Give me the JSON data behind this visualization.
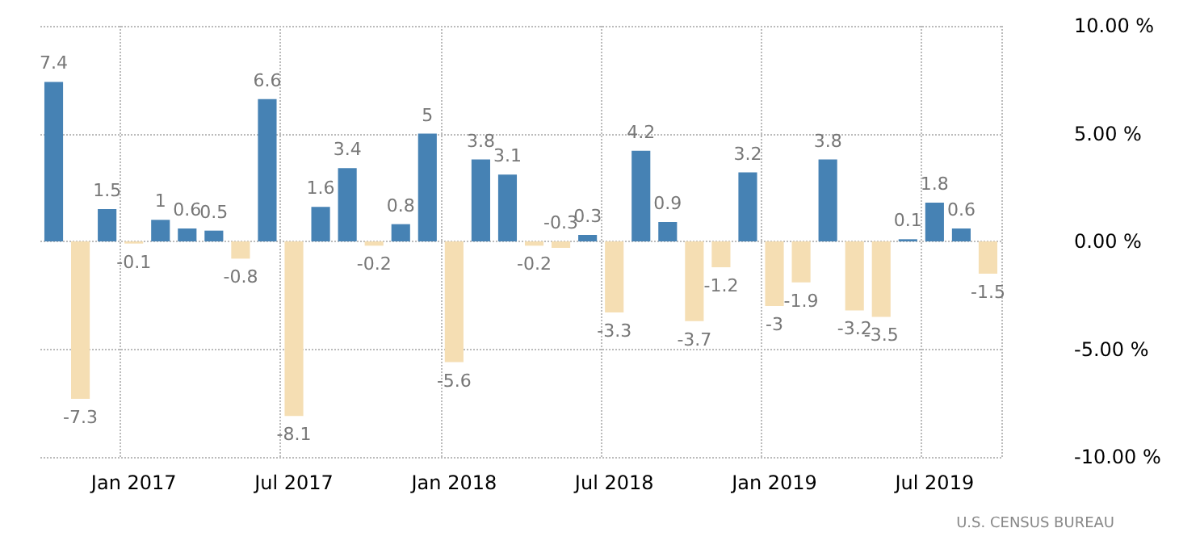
{
  "chart_data": {
    "type": "bar",
    "categories": [
      null,
      null,
      null,
      "Jan 2017",
      null,
      null,
      null,
      null,
      null,
      "Jul 2017",
      null,
      null,
      null,
      null,
      null,
      "Jan 2018",
      null,
      null,
      null,
      null,
      null,
      "Jul 2018",
      null,
      null,
      null,
      null,
      null,
      "Jan 2019",
      null,
      null,
      null,
      null,
      null,
      "Jul 2019",
      null,
      null
    ],
    "values": [
      7.4,
      -7.3,
      1.5,
      -0.1,
      1,
      0.6,
      0.5,
      -0.8,
      6.6,
      -8.1,
      1.6,
      3.4,
      -0.2,
      0.8,
      5,
      -5.6,
      3.8,
      3.1,
      -0.2,
      -0.3,
      0.3,
      -3.3,
      4.2,
      0.9,
      -3.7,
      -1.2,
      3.2,
      -3,
      -1.9,
      3.8,
      -3.2,
      -3.5,
      0.1,
      1.8,
      0.6,
      -1.5
    ],
    "colors": [
      "#4682b4",
      "#f5deb3",
      "#4682b4",
      "#f5deb3",
      "#4682b4",
      "#4682b4",
      "#4682b4",
      "#f5deb3",
      "#4682b4",
      "#f5deb3",
      "#4682b4",
      "#4682b4",
      "#f5deb3",
      "#4682b4",
      "#4682b4",
      "#f5deb3",
      "#4682b4",
      "#4682b4",
      "#f5deb3",
      "#f5deb3",
      "#4682b4",
      "#f5deb3",
      "#4682b4",
      "#4682b4",
      "#f5deb3",
      "#f5deb3",
      "#4682b4",
      "#f5deb3",
      "#f5deb3",
      "#4682b4",
      "#f5deb3",
      "#f5deb3",
      "#4682b4",
      "#4682b4",
      "#4682b4",
      "#f5deb3"
    ],
    "ylim": [
      -10,
      10
    ],
    "yticks": [
      {
        "value": -10,
        "label": "-10.00 %"
      },
      {
        "value": -5,
        "label": "-5.00 %"
      },
      {
        "value": 0,
        "label": "0.00 %"
      },
      {
        "value": 5,
        "label": "5.00 %"
      },
      {
        "value": 10,
        "label": "10.00 %"
      }
    ],
    "data_labels": true,
    "grid": true,
    "annotations": [
      "U.S. CENSUS BUREAU"
    ]
  }
}
